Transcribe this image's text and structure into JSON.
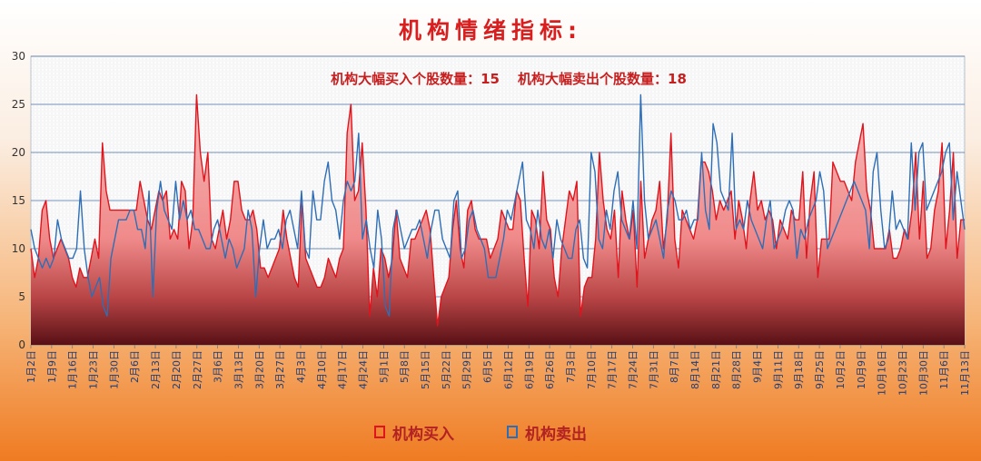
{
  "page": {
    "title": "机构情绪指标:"
  },
  "chart_data": {
    "type": "area",
    "title": "机构情绪指标:",
    "subtitle_items": [
      {
        "label": "机构大幅买入个股数量：",
        "value": "15"
      },
      {
        "label": "机构大幅卖出个股数量：",
        "value": "18"
      }
    ],
    "xlabel": "",
    "ylabel": "",
    "ylim": [
      0,
      30
    ],
    "yticks": [
      0,
      5,
      10,
      15,
      20,
      25,
      30
    ],
    "grid": true,
    "legend_position": "bottom",
    "x_tick_labels": [
      "1月2日",
      "1月9日",
      "1月16日",
      "1月23日",
      "1月30日",
      "2月6日",
      "2月13日",
      "2月20日",
      "2月27日",
      "3月6日",
      "3月13日",
      "3月20日",
      "3月27日",
      "4月3日",
      "4月10日",
      "4月17日",
      "4月24日",
      "5月1日",
      "5月8日",
      "5月15日",
      "5月22日",
      "5月29日",
      "6月5日",
      "6月12日",
      "6月19日",
      "6月26日",
      "7月3日",
      "7月10日",
      "7月17日",
      "7月24日",
      "7月31日",
      "8月7日",
      "8月14日",
      "8月21日",
      "8月28日",
      "9月4日",
      "9月11日",
      "9月18日",
      "9月25日",
      "10月2日",
      "10月9日",
      "10月16日",
      "10月23日",
      "10月30日",
      "11月6日",
      "11月13日"
    ],
    "series": [
      {
        "name": "机构买入",
        "color": "#e0141c",
        "style": "area",
        "values": [
          10,
          7,
          9,
          14,
          15,
          11,
          9,
          10,
          11,
          10,
          9,
          7,
          6,
          8,
          7,
          7,
          9,
          11,
          9,
          21,
          16,
          14,
          14,
          14,
          14,
          14,
          14,
          14,
          14,
          17,
          15,
          13,
          12,
          14,
          16,
          15,
          16,
          11,
          12,
          11,
          17,
          16,
          10,
          13,
          26,
          20,
          17,
          20,
          11,
          10,
          12,
          14,
          11,
          13,
          17,
          17,
          14,
          13,
          13,
          14,
          12,
          8,
          8,
          7,
          8,
          9,
          10,
          14,
          11,
          9,
          7,
          6,
          15,
          9,
          8,
          7,
          6,
          6,
          7,
          9,
          8,
          7,
          9,
          10,
          22,
          25,
          15,
          16,
          21,
          14,
          3,
          8,
          5,
          10,
          9,
          7,
          9,
          14,
          9,
          8,
          7,
          11,
          11,
          12,
          13,
          14,
          12,
          7,
          2,
          5,
          6,
          7,
          12,
          15,
          10,
          8,
          14,
          15,
          12,
          11,
          11,
          11,
          9,
          10,
          11,
          14,
          13,
          12,
          12,
          16,
          15,
          9,
          4,
          14,
          13,
          10,
          18,
          13,
          12,
          7,
          5,
          10,
          13,
          16,
          15,
          17,
          3,
          6,
          7,
          7,
          11,
          20,
          15,
          12,
          11,
          14,
          7,
          16,
          13,
          11,
          14,
          6,
          17,
          9,
          11,
          13,
          14,
          17,
          10,
          13,
          22,
          11,
          8,
          14,
          13,
          12,
          11,
          13,
          19,
          19,
          18,
          16,
          13,
          15,
          14,
          15,
          16,
          11,
          15,
          13,
          10,
          15,
          18,
          14,
          15,
          13,
          14,
          13,
          10,
          13,
          12,
          11,
          14,
          13,
          13,
          18,
          9,
          15,
          18,
          7,
          11,
          11,
          11,
          19,
          18,
          17,
          17,
          16,
          15,
          19,
          21,
          23,
          16,
          14,
          10,
          10,
          10,
          10,
          12,
          9,
          9,
          10,
          12,
          11,
          14,
          20,
          11,
          17,
          9,
          10,
          14,
          16,
          21,
          10,
          14,
          20,
          9,
          13,
          13
        ]
      },
      {
        "name": "机构卖出",
        "color": "#2e6eb6",
        "style": "line",
        "values": [
          12,
          10,
          9,
          8,
          9,
          8,
          9,
          13,
          11,
          10,
          9,
          9,
          10,
          16,
          10,
          7,
          5,
          6,
          7,
          4,
          3,
          9,
          11,
          13,
          13,
          13,
          14,
          14,
          12,
          12,
          10,
          16,
          5,
          14,
          17,
          14,
          13,
          12,
          17,
          13,
          15,
          13,
          14,
          12,
          12,
          11,
          10,
          10,
          12,
          13,
          11,
          9,
          11,
          10,
          8,
          9,
          10,
          14,
          12,
          5,
          10,
          13,
          10,
          11,
          11,
          12,
          10,
          13,
          14,
          12,
          10,
          16,
          10,
          9,
          16,
          13,
          13,
          17,
          19,
          15,
          14,
          11,
          15,
          17,
          16,
          17,
          22,
          11,
          13,
          10,
          8,
          14,
          11,
          4,
          3,
          12,
          14,
          12,
          10,
          11,
          12,
          12,
          13,
          11,
          9,
          12,
          14,
          14,
          11,
          10,
          9,
          15,
          16,
          9,
          10,
          13,
          14,
          12,
          11,
          10,
          7,
          7,
          7,
          9,
          11,
          14,
          13,
          15,
          17,
          19,
          13,
          12,
          10,
          14,
          11,
          10,
          12,
          9,
          13,
          11,
          10,
          9,
          9,
          12,
          13,
          9,
          8,
          20,
          18,
          11,
          10,
          14,
          12,
          16,
          18,
          13,
          12,
          11,
          15,
          10,
          26,
          15,
          11,
          12,
          13,
          11,
          9,
          14,
          16,
          15,
          13,
          13,
          14,
          12,
          13,
          13,
          20,
          14,
          12,
          23,
          21,
          16,
          15,
          14,
          22,
          12,
          13,
          12,
          15,
          13,
          12,
          11,
          10,
          13,
          15,
          10,
          11,
          12,
          14,
          15,
          14,
          9,
          12,
          11,
          13,
          14,
          15,
          18,
          16,
          10,
          11,
          12,
          13,
          14,
          15,
          16,
          17,
          16,
          15,
          14,
          10,
          18,
          20,
          14,
          10,
          11,
          16,
          12,
          13,
          12,
          11,
          21,
          14,
          20,
          21,
          14,
          15,
          16,
          17,
          18,
          20,
          21,
          13,
          18,
          15,
          12
        ]
      }
    ]
  }
}
